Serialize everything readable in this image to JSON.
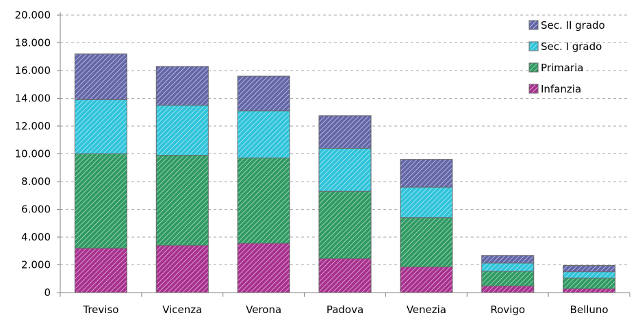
{
  "chart_data": {
    "type": "bar",
    "stacked": true,
    "categories": [
      "Treviso",
      "Vicenza",
      "Verona",
      "Padova",
      "Venezia",
      "Rovigo",
      "Belluno"
    ],
    "series": [
      {
        "name": "Infanzia",
        "values": [
          3200,
          3400,
          3550,
          2450,
          1850,
          480,
          280
        ],
        "color": "#a8308e"
      },
      {
        "name": "Primaria",
        "values": [
          6800,
          6500,
          6150,
          4850,
          3550,
          1050,
          760
        ],
        "color": "#2e9a62"
      },
      {
        "name": "Sec. I grado",
        "values": [
          3900,
          3600,
          3400,
          3100,
          2200,
          600,
          460
        ],
        "color": "#2fc4da"
      },
      {
        "name": "Sec. II grado",
        "values": [
          3300,
          2800,
          2500,
          2350,
          2000,
          550,
          450
        ],
        "color": "#6366a8"
      }
    ],
    "legend_order": [
      "Sec. II grado",
      "Sec. I grado",
      "Primaria",
      "Infanzia"
    ],
    "y_ticks": [
      "0",
      "2.000",
      "4.000",
      "6.000",
      "8.000",
      "10.000",
      "12.000",
      "14.000",
      "16.000",
      "18.000",
      "20.000"
    ],
    "ylim": [
      0,
      20000
    ],
    "grid": true,
    "legend_position": "top-right",
    "title": "",
    "xlabel": "",
    "ylabel": ""
  }
}
